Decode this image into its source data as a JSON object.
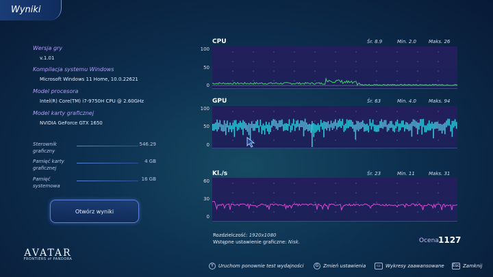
{
  "header": {
    "title": "Wyniki"
  },
  "system_info": [
    {
      "label": "Wersja gry",
      "value": "v.1.01"
    },
    {
      "label": "Kompilacja systemu Windows",
      "value": "Microsoft Windows 11 Home, 10.0.22621"
    },
    {
      "label": "Model procesora",
      "value": "Intel(R) Core(TM) i7-9750H CPU @ 2.60GHz"
    },
    {
      "label": "Model karty graficznej",
      "value": "NVIDIA GeForce GTX 1650"
    }
  ],
  "memory": [
    {
      "label": "Sterownik graficzny",
      "value": "546.29"
    },
    {
      "label": "Pamięć karty graficznej",
      "value": "4 GB"
    },
    {
      "label": "Pamięć systemowa",
      "value": "16 GB"
    }
  ],
  "open_results_button": "Otwórz wyniki",
  "charts": {
    "cpu": {
      "name": "CPU",
      "avg": "Śr. 8.9",
      "min": "Min. 2.0",
      "max": "Maks. 26",
      "ticks": [
        "100",
        "50",
        "0"
      ],
      "color": "#3fd26a"
    },
    "gpu": {
      "name": "GPU",
      "avg": "Śr. 63",
      "min": "Min. 4.0",
      "max": "Maks. 94",
      "ticks": [
        "100",
        "50",
        "0"
      ],
      "color": "#35c6dc"
    },
    "fps": {
      "name": "Kl./s",
      "avg": "Śr. 23",
      "min": "Min. 11",
      "max": "Maks. 31",
      "ticks": [
        "60",
        "30",
        "0"
      ],
      "color": "#d84ad6"
    }
  },
  "chart_data": [
    {
      "type": "line",
      "title": "CPU",
      "ylim": [
        0,
        100
      ],
      "summary": {
        "avg": 8.9,
        "min": 2.0,
        "max": 26
      }
    },
    {
      "type": "bar",
      "title": "GPU",
      "ylim": [
        0,
        100
      ],
      "summary": {
        "avg": 63,
        "min": 4.0,
        "max": 94
      }
    },
    {
      "type": "line",
      "title": "Kl./s",
      "ylim": [
        0,
        60
      ],
      "summary": {
        "avg": 23,
        "min": 11,
        "max": 31
      }
    }
  ],
  "footer": {
    "resolution_label": "Rozdzielczość:",
    "resolution_value": "1920x1080",
    "preset_label": "Wstępne ustawienie graficzne:",
    "preset_value": "Nisk.",
    "score_label": "Ocena",
    "score_value": "1127"
  },
  "hints": [
    {
      "key": "Y",
      "label": "Uruchom ponownie test wydajności"
    },
    {
      "key": "G",
      "label": "Zmień ustawienia"
    },
    {
      "key": "▭",
      "label": "Wykresy zaawansowane"
    },
    {
      "key": "Esc",
      "label": "Zamknij"
    }
  ],
  "logo": {
    "main": "AVATAR",
    "sub": "FRONTIERS of PANDORA"
  }
}
